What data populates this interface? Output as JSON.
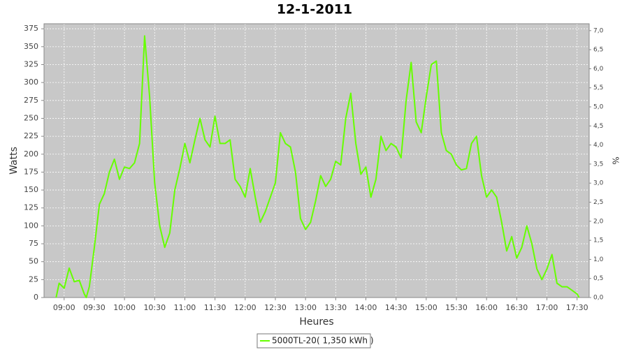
{
  "chart_data": {
    "type": "line",
    "title": "12-1-2011",
    "x_label": "Heures",
    "y_label": "Watts",
    "y2_label": "%",
    "x": [
      "08:52",
      "08:55",
      "09:00",
      "09:05",
      "09:10",
      "09:15",
      "09:20",
      "09:22",
      "09:25",
      "09:30",
      "09:35",
      "09:40",
      "09:45",
      "09:50",
      "09:55",
      "10:00",
      "10:05",
      "10:10",
      "10:15",
      "10:20",
      "10:25",
      "10:30",
      "10:35",
      "10:40",
      "10:45",
      "10:50",
      "10:55",
      "11:00",
      "11:05",
      "11:10",
      "11:15",
      "11:20",
      "11:25",
      "11:30",
      "11:35",
      "11:40",
      "11:45",
      "11:50",
      "11:55",
      "12:00",
      "12:05",
      "12:10",
      "12:15",
      "12:20",
      "12:25",
      "12:30",
      "12:35",
      "12:40",
      "12:45",
      "12:50",
      "12:55",
      "13:00",
      "13:05",
      "13:10",
      "13:15",
      "13:20",
      "13:25",
      "13:30",
      "13:35",
      "13:40",
      "13:45",
      "13:50",
      "13:55",
      "14:00",
      "14:05",
      "14:10",
      "14:15",
      "14:20",
      "14:25",
      "14:30",
      "14:35",
      "14:40",
      "14:45",
      "14:50",
      "14:55",
      "15:00",
      "15:05",
      "15:10",
      "15:15",
      "15:20",
      "15:25",
      "15:30",
      "15:35",
      "15:40",
      "15:45",
      "15:50",
      "15:55",
      "16:00",
      "16:05",
      "16:10",
      "16:15",
      "16:20",
      "16:25",
      "16:30",
      "16:35",
      "16:40",
      "16:45",
      "16:50",
      "16:55",
      "17:00",
      "17:05",
      "17:10",
      "17:15",
      "17:20",
      "17:25",
      "17:30",
      "17:32"
    ],
    "series": [
      {
        "name": "5000TL-20( 1,350 kWh )",
        "color": "#66ff00",
        "values": [
          0,
          20,
          13,
          41,
          22,
          24,
          5,
          0,
          15,
          70,
          130,
          145,
          175,
          193,
          165,
          182,
          180,
          188,
          215,
          365,
          280,
          160,
          100,
          70,
          90,
          150,
          180,
          215,
          188,
          220,
          250,
          220,
          210,
          253,
          215,
          215,
          220,
          165,
          155,
          140,
          180,
          140,
          105,
          120,
          140,
          160,
          230,
          215,
          210,
          175,
          110,
          95,
          105,
          135,
          170,
          155,
          165,
          190,
          185,
          250,
          285,
          215,
          172,
          182,
          140,
          165,
          225,
          205,
          215,
          210,
          195,
          275,
          328,
          245,
          230,
          280,
          325,
          330,
          230,
          205,
          200,
          185,
          178,
          180,
          215,
          225,
          170,
          140,
          150,
          140,
          105,
          65,
          85,
          55,
          70,
          100,
          75,
          40,
          25,
          40,
          60,
          20,
          15,
          15,
          10,
          5,
          0
        ]
      }
    ],
    "xlim": [
      "08:40",
      "17:42"
    ],
    "xticks": [
      "09:00",
      "09:30",
      "10:00",
      "10:30",
      "11:00",
      "11:30",
      "12:00",
      "12:30",
      "13:00",
      "13:30",
      "14:00",
      "14:30",
      "15:00",
      "15:30",
      "16:00",
      "16:30",
      "17:00",
      "17:30"
    ],
    "ylim": [
      0,
      382
    ],
    "yticks": [
      0,
      25,
      50,
      75,
      100,
      125,
      150,
      175,
      200,
      225,
      250,
      275,
      300,
      325,
      350,
      375
    ],
    "y2lim": [
      0,
      7.18
    ],
    "y2ticks": [
      {
        "value": 0,
        "label": "0,0"
      },
      {
        "value": 0.5,
        "label": "0,5"
      },
      {
        "value": 1,
        "label": "1,0"
      },
      {
        "value": 1.5,
        "label": "1,5"
      },
      {
        "value": 2,
        "label": "2,0"
      },
      {
        "value": 2.5,
        "label": "2,5"
      },
      {
        "value": 3,
        "label": "3,0"
      },
      {
        "value": 3.5,
        "label": "3,5"
      },
      {
        "value": 4,
        "label": "4,0"
      },
      {
        "value": 4.5,
        "label": "4,5"
      },
      {
        "value": 5,
        "label": "5,0"
      },
      {
        "value": 5.5,
        "label": "5,5"
      },
      {
        "value": 6,
        "label": "6,0"
      },
      {
        "value": 6.5,
        "label": "6,5"
      },
      {
        "value": 7,
        "label": "7,0"
      }
    ],
    "grid": true
  }
}
